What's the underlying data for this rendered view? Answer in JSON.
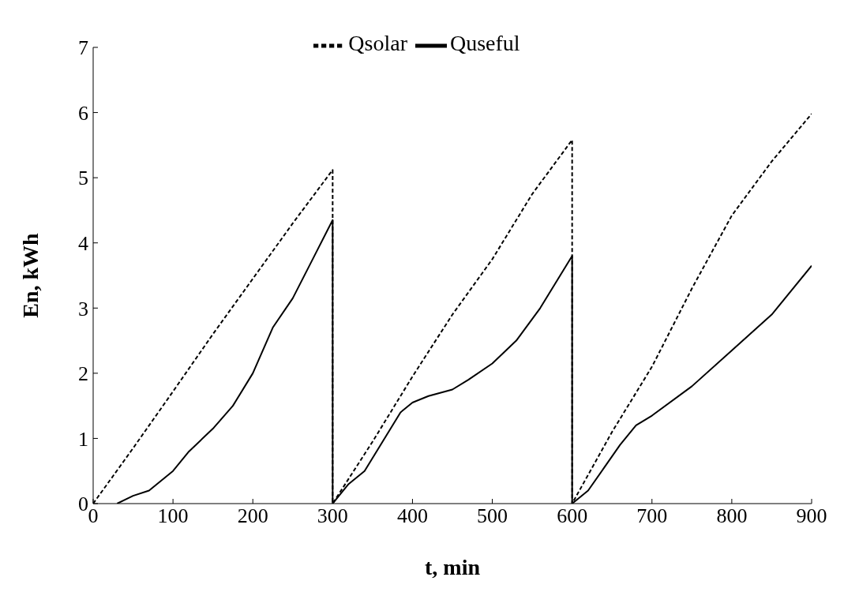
{
  "chart_data": {
    "type": "line",
    "xlabel": "t, min",
    "ylabel": "En, kWh",
    "xlim": [
      0,
      900
    ],
    "xticks": [
      0,
      100,
      200,
      300,
      400,
      500,
      600,
      700,
      800,
      900
    ],
    "ylim": [
      0,
      7
    ],
    "yticks": [
      0,
      1,
      2,
      3,
      4,
      5,
      6,
      7
    ],
    "grid": false,
    "legend": "top",
    "marker": "none",
    "series": [
      {
        "name": "Qsolar",
        "color": "#000000",
        "line_style": "dashed",
        "x": [
          0,
          50,
          100,
          150,
          200,
          250,
          300,
          300,
          350,
          400,
          450,
          500,
          550,
          600,
          600,
          650,
          700,
          750,
          800,
          850,
          900
        ],
        "values": [
          0,
          0.85,
          1.72,
          2.6,
          3.45,
          4.3,
          5.12,
          0,
          0.95,
          1.95,
          2.9,
          3.75,
          4.75,
          5.58,
          0,
          1.1,
          2.1,
          3.3,
          4.42,
          5.25,
          5.98
        ]
      },
      {
        "name": "Quseful",
        "color": "#000000",
        "line_style": "solid",
        "x": [
          30,
          50,
          70,
          100,
          120,
          150,
          175,
          200,
          225,
          250,
          275,
          300,
          300,
          320,
          340,
          360,
          385,
          400,
          420,
          450,
          470,
          500,
          530,
          560,
          600,
          600,
          620,
          640,
          660,
          680,
          700,
          750,
          800,
          850,
          900
        ],
        "values": [
          0,
          0.12,
          0.2,
          0.5,
          0.8,
          1.15,
          1.5,
          2.0,
          2.7,
          3.15,
          3.75,
          4.35,
          0,
          0.3,
          0.5,
          0.9,
          1.4,
          1.55,
          1.65,
          1.75,
          1.9,
          2.15,
          2.5,
          3.0,
          3.8,
          0,
          0.2,
          0.55,
          0.9,
          1.2,
          1.35,
          1.8,
          2.35,
          2.9,
          3.65
        ]
      }
    ]
  }
}
